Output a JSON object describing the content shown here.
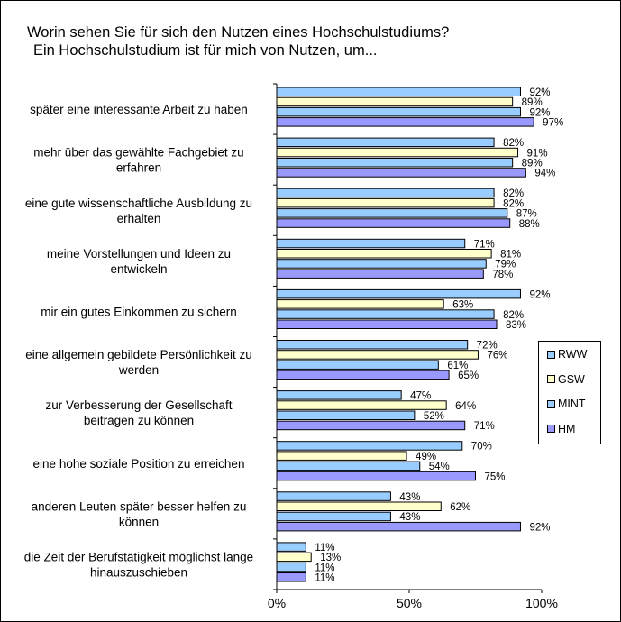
{
  "title_lines": [
    "Worin sehen Sie für sich den Nutzen eines Hochschulstudiums?",
    "Ein Hochschulstudium ist für mich von Nutzen, um..."
  ],
  "chart_data": {
    "type": "bar",
    "orientation": "horizontal",
    "categories": [
      [
        "später eine interessante Arbeit zu haben"
      ],
      [
        "mehr über das gewählte Fachgebiet zu",
        "erfahren"
      ],
      [
        "eine gute wissenschaftliche Ausbildung zu",
        "erhalten"
      ],
      [
        "meine Vorstellungen und Ideen zu",
        "entwickeln"
      ],
      [
        "mir ein gutes Einkommen zu sichern"
      ],
      [
        "eine allgemein gebildete Persönlichkeit zu",
        "werden"
      ],
      [
        "zur Verbesserung der Gesellschaft",
        "beitragen zu können"
      ],
      [
        "eine hohe soziale Position zu erreichen"
      ],
      [
        "anderen Leuten später besser helfen zu",
        "können"
      ],
      [
        "die Zeit der Berufstätigkeit möglichst lange",
        "hinauszuschieben"
      ]
    ],
    "series": [
      {
        "name": "RWW",
        "color": "#99ccff",
        "values": [
          92,
          82,
          82,
          71,
          92,
          72,
          47,
          70,
          43,
          11
        ]
      },
      {
        "name": "GSW",
        "color": "#ffffcc",
        "values": [
          89,
          91,
          82,
          81,
          63,
          76,
          64,
          49,
          62,
          13
        ]
      },
      {
        "name": "MINT",
        "color": "#99ccff",
        "values": [
          92,
          89,
          87,
          79,
          82,
          61,
          52,
          54,
          43,
          11
        ]
      },
      {
        "name": "HM",
        "color": "#9999ff",
        "values": [
          97,
          94,
          88,
          78,
          83,
          65,
          71,
          75,
          92,
          11
        ]
      }
    ],
    "value_suffix": "%",
    "xlim": [
      0,
      100
    ],
    "x_ticks": [
      "0%",
      "50%",
      "100%"
    ],
    "legend_position": "right",
    "grid": false
  }
}
